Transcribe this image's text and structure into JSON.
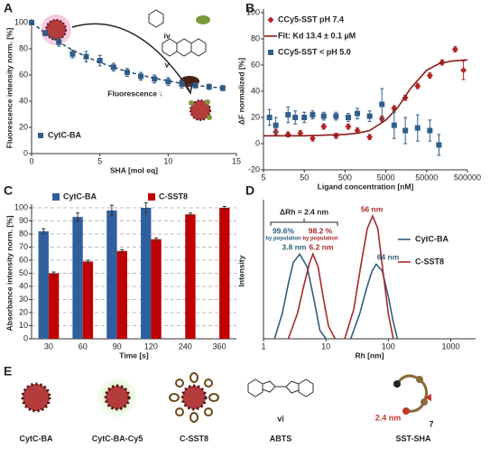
{
  "chart_data": [
    {
      "type": "scatter",
      "label": "A",
      "xlabel": "SHA [mol eq]",
      "ylabel": "Fluorescence intensity norm. [%]",
      "xlim": [
        0,
        15
      ],
      "xticks": [
        0,
        5,
        10,
        15
      ],
      "ylim": [
        0,
        100
      ],
      "yticks": [
        0,
        20,
        40,
        60,
        80,
        100
      ],
      "legend": "lower left",
      "series": [
        {
          "name": "CytC-BA",
          "color": "#2f5f8a",
          "marker": "square",
          "x": [
            0,
            1,
            2,
            3,
            4,
            5,
            6,
            7,
            8,
            9,
            10,
            11,
            12,
            13,
            14
          ],
          "values": [
            100,
            92,
            85,
            76,
            74,
            71,
            66,
            62,
            59,
            57,
            55,
            53,
            52,
            51,
            50
          ],
          "errors": [
            1,
            2,
            3,
            3,
            4,
            4,
            3,
            3,
            3,
            3,
            3,
            3,
            2,
            2,
            2
          ]
        },
        {
          "color": "#2f4f6f",
          "dashed": true,
          "x": [
            0,
            1,
            2,
            3,
            4,
            5,
            6,
            7,
            8,
            9,
            10,
            11,
            12,
            13,
            14
          ],
          "values": [
            100,
            92,
            85,
            79,
            74,
            69.5,
            66,
            62.5,
            60,
            57.5,
            55.5,
            53.5,
            52,
            51,
            50
          ]
        }
      ],
      "annotations": [
        {
          "text": "iv",
          "color": "#222"
        },
        {
          "text": "v",
          "color": "#222"
        },
        {
          "text": "Fluorescence ↓",
          "color": "#222"
        }
      ]
    },
    {
      "type": "scatter",
      "label": "B",
      "xlabel": "Ligand concentration [nM]",
      "ylabel": "ΔF normalized [%]",
      "xscale": "log",
      "xlim": [
        5,
        500000
      ],
      "xticks": [
        5,
        50,
        500,
        5000,
        50000,
        500000
      ],
      "ylim": [
        -20,
        100
      ],
      "yticks": [
        -20,
        0,
        20,
        40,
        60,
        80,
        100
      ],
      "legend": "upper left",
      "series": [
        {
          "name": "CCy5-SST pH 7.4",
          "color": "#b22222",
          "marker": "diamond",
          "x": [
            10,
            20,
            40,
            80,
            150,
            300,
            600,
            1000,
            2000,
            4000,
            8000,
            15000,
            30000,
            60000,
            120000,
            250000,
            400000
          ],
          "values": [
            9,
            7,
            8,
            4,
            13,
            6,
            13,
            10,
            5,
            19,
            27,
            35,
            44,
            52,
            62,
            72,
            56
          ],
          "errors": [
            2,
            2,
            2,
            2,
            2,
            2,
            2,
            2,
            2,
            2,
            2,
            2,
            2,
            2,
            2,
            2,
            7
          ]
        },
        {
          "name": "Fit: Kd 13.4 ± 0.1 µM",
          "color": "#8b1a1a",
          "x": [
            5,
            50,
            500,
            1000,
            2000,
            5000,
            10000,
            20000,
            50000,
            100000,
            200000,
            500000
          ],
          "values": [
            6,
            6,
            7,
            8,
            10,
            18,
            28,
            42,
            56,
            61,
            63,
            64
          ]
        },
        {
          "name": "CCy5-SST < pH 5.0",
          "color": "#2f5f8a",
          "marker": "square",
          "x": [
            7,
            10,
            20,
            30,
            50,
            80,
            150,
            300,
            600,
            1000,
            2000,
            4000,
            8000,
            15000,
            30000,
            60000,
            100000
          ],
          "values": [
            20,
            14,
            22,
            20,
            20,
            22,
            21,
            21,
            20,
            23,
            21,
            30,
            14,
            10,
            12,
            10,
            -1
          ],
          "errors": [
            6,
            6,
            6,
            5,
            4,
            3,
            3,
            3,
            3,
            4,
            4,
            12,
            10,
            10,
            10,
            8,
            8
          ]
        }
      ]
    },
    {
      "type": "bar",
      "label": "C",
      "xlabel": "Time [s]",
      "ylabel": "Absorbance intensity norm. [%]",
      "categories": [
        "30",
        "60",
        "90",
        "120",
        "240",
        "360"
      ],
      "ylim": [
        0,
        100
      ],
      "yticks": [
        0,
        10,
        20,
        30,
        40,
        50,
        60,
        70,
        80,
        90,
        100
      ],
      "grid": true,
      "legend": "top",
      "series": [
        {
          "name": "CytC-BA",
          "color": "#2f5f9e",
          "values": [
            82,
            93,
            98,
            100,
            null,
            null
          ],
          "errors": [
            2,
            3,
            4,
            4,
            null,
            null
          ]
        },
        {
          "name": "C-SST8",
          "color": "#c00000",
          "values": [
            50,
            59,
            67,
            76,
            95,
            100
          ],
          "errors": [
            1,
            1,
            1,
            1,
            1,
            1
          ]
        }
      ]
    },
    {
      "type": "line",
      "label": "D",
      "xlabel": "Rh [nm]",
      "ylabel": "Intensity",
      "xscale": "log",
      "xlim": [
        1,
        2500
      ],
      "xticks": [
        1,
        10,
        100,
        1000
      ],
      "ylim": [
        0,
        1.6
      ],
      "legend": "right",
      "series": [
        {
          "name": "CytC-BA",
          "color": "#2f5f7d",
          "x": [
            1.5,
            2,
            2.5,
            3,
            3.8,
            5,
            6.5,
            8,
            10,
            null,
            25,
            35,
            45,
            55,
            64,
            80,
            100,
            120,
            140
          ],
          "values": [
            0,
            0.3,
            0.65,
            0.9,
            1.0,
            0.85,
            0.45,
            0.1,
            0,
            null,
            0,
            0.3,
            0.6,
            0.8,
            0.88,
            0.8,
            0.5,
            0.2,
            0
          ]
        },
        {
          "name": "C-SST8",
          "color": "#a52a2a",
          "x": [
            2.5,
            3.5,
            4.5,
            5.5,
            6.2,
            7.5,
            9,
            11,
            14,
            null,
            20,
            28,
            36,
            46,
            56,
            68,
            82,
            100,
            120
          ],
          "values": [
            0,
            0.3,
            0.65,
            0.9,
            1.0,
            0.85,
            0.5,
            0.15,
            0,
            null,
            0,
            0.35,
            0.85,
            1.3,
            1.45,
            1.3,
            0.8,
            0.3,
            0
          ]
        }
      ],
      "annotations": [
        {
          "text": "ΔRh = 2.4 nm",
          "color": "#222"
        },
        {
          "text": "99.6%",
          "color": "#2f5f7d"
        },
        {
          "text": "by population",
          "color": "#2f5f7d"
        },
        {
          "text": "98.2 %",
          "color": "#a52a2a"
        },
        {
          "text": "by population",
          "color": "#a52a2a"
        },
        {
          "text": "3.8 nm",
          "color": "#2f5f7d"
        },
        {
          "text": "6.2 nm",
          "color": "#a52a2a"
        },
        {
          "text": "56 nm",
          "color": "#a52a2a"
        },
        {
          "text": "64 nm",
          "color": "#2f5f7d"
        }
      ]
    }
  ],
  "panel_e": {
    "label": "E",
    "items": [
      {
        "label": "CytC-BA"
      },
      {
        "label": "CytC-BA-Cy5"
      },
      {
        "label": "C-SST8"
      },
      {
        "label": "ABTS",
        "number": "vi"
      },
      {
        "label": "SST-SHA",
        "number": "7",
        "note": "2.4 nm"
      }
    ]
  }
}
